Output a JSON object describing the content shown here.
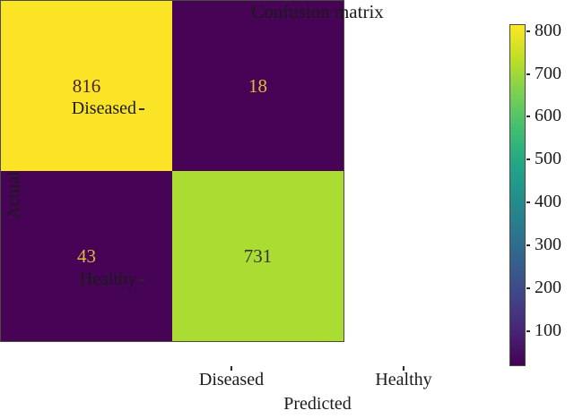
{
  "chart_data": {
    "type": "heatmap",
    "title": "Confusion matrix",
    "xlabel": "Predicted",
    "ylabel": "Actual",
    "x_categories": [
      "Diseased",
      "Healthy"
    ],
    "y_categories": [
      "Diseased",
      "Healthy"
    ],
    "matrix_rows": [
      [
        816,
        18
      ],
      [
        43,
        731
      ]
    ],
    "cells": [
      {
        "actual": "Diseased",
        "predicted": "Diseased",
        "value": "816",
        "bg": "#fbe325",
        "fg": "#4b2030"
      },
      {
        "actual": "Diseased",
        "predicted": "Healthy",
        "value": "18",
        "bg": "#470457",
        "fg": "#e3b83a"
      },
      {
        "actual": "Healthy",
        "predicted": "Diseased",
        "value": "43",
        "bg": "#470457",
        "fg": "#e3b83a"
      },
      {
        "actual": "Healthy",
        "predicted": "Healthy",
        "value": "731",
        "bg": "#aadc32",
        "fg": "#35343c"
      }
    ],
    "colormap": "viridis",
    "vmin": 18,
    "vmax": 816,
    "colorbar": {
      "ticks": [
        "100",
        "200",
        "300",
        "400",
        "500",
        "600",
        "700",
        "800"
      ],
      "gradient_stops": [
        "#440154",
        "#482475",
        "#414487",
        "#355f8d",
        "#2a788e",
        "#21918c",
        "#22a884",
        "#44bf70",
        "#7ad151",
        "#bddf26",
        "#fde725"
      ]
    },
    "layout": {
      "legend": "colorbar-right",
      "grid": "off",
      "background": "#ffffff"
    }
  }
}
